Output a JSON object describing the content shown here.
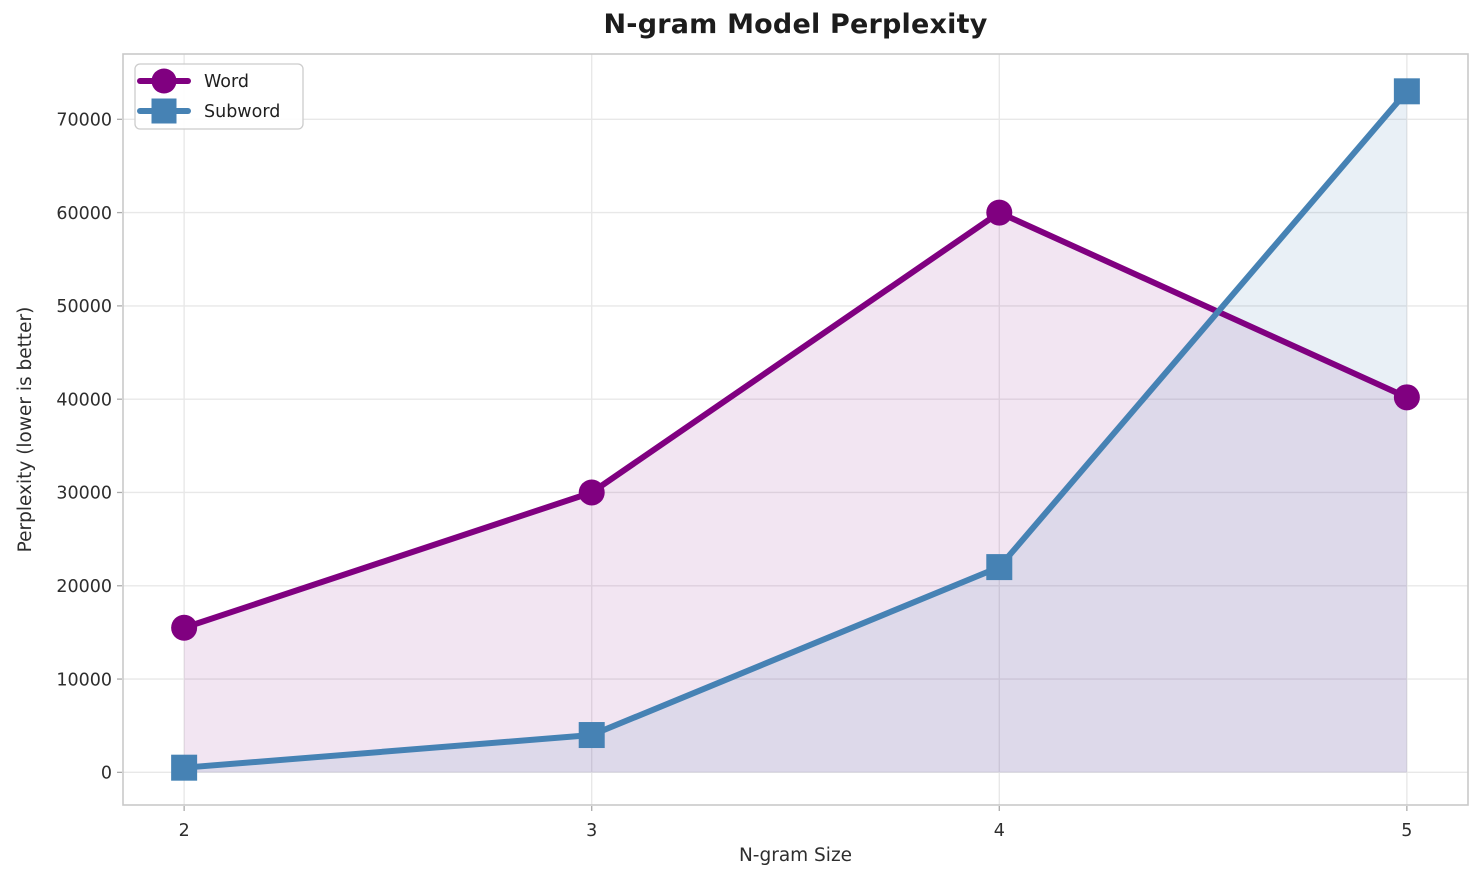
{
  "figure": {
    "background": "#ffffff"
  },
  "chart_data": {
    "type": "line",
    "title": "N-gram Model Perplexity",
    "xlabel": "N-gram Size",
    "ylabel": "Perplexity (lower is better)",
    "x": [
      2,
      3,
      4,
      5
    ],
    "x_tick_labels": [
      "2",
      "3",
      "4",
      "5"
    ],
    "y_ticks": [
      0,
      10000,
      20000,
      30000,
      40000,
      50000,
      60000,
      70000
    ],
    "y_tick_labels": [
      "0",
      "10000",
      "20000",
      "30000",
      "40000",
      "50000",
      "60000",
      "70000"
    ],
    "xlim": [
      1.85,
      5.15
    ],
    "ylim": [
      -3500,
      77000
    ],
    "grid": true,
    "legend": {
      "position": "upper left",
      "entries": [
        "Word",
        "Subword"
      ]
    },
    "series": [
      {
        "name": "Word",
        "marker": "circle",
        "color": "#800080",
        "fill_opacity": 0.1,
        "values": [
          15500,
          30000,
          60000,
          40200
        ]
      },
      {
        "name": "Subword",
        "marker": "square",
        "color": "#4682B4",
        "fill_opacity": 0.12,
        "values": [
          500,
          4000,
          22000,
          73000
        ]
      }
    ],
    "style": {
      "grid_color": "#e8e8e8",
      "spine_color": "#c9c9c9",
      "tick_color": "#ababab",
      "title_color": "#1c1c1c",
      "label_color": "#2e2e2e"
    }
  }
}
